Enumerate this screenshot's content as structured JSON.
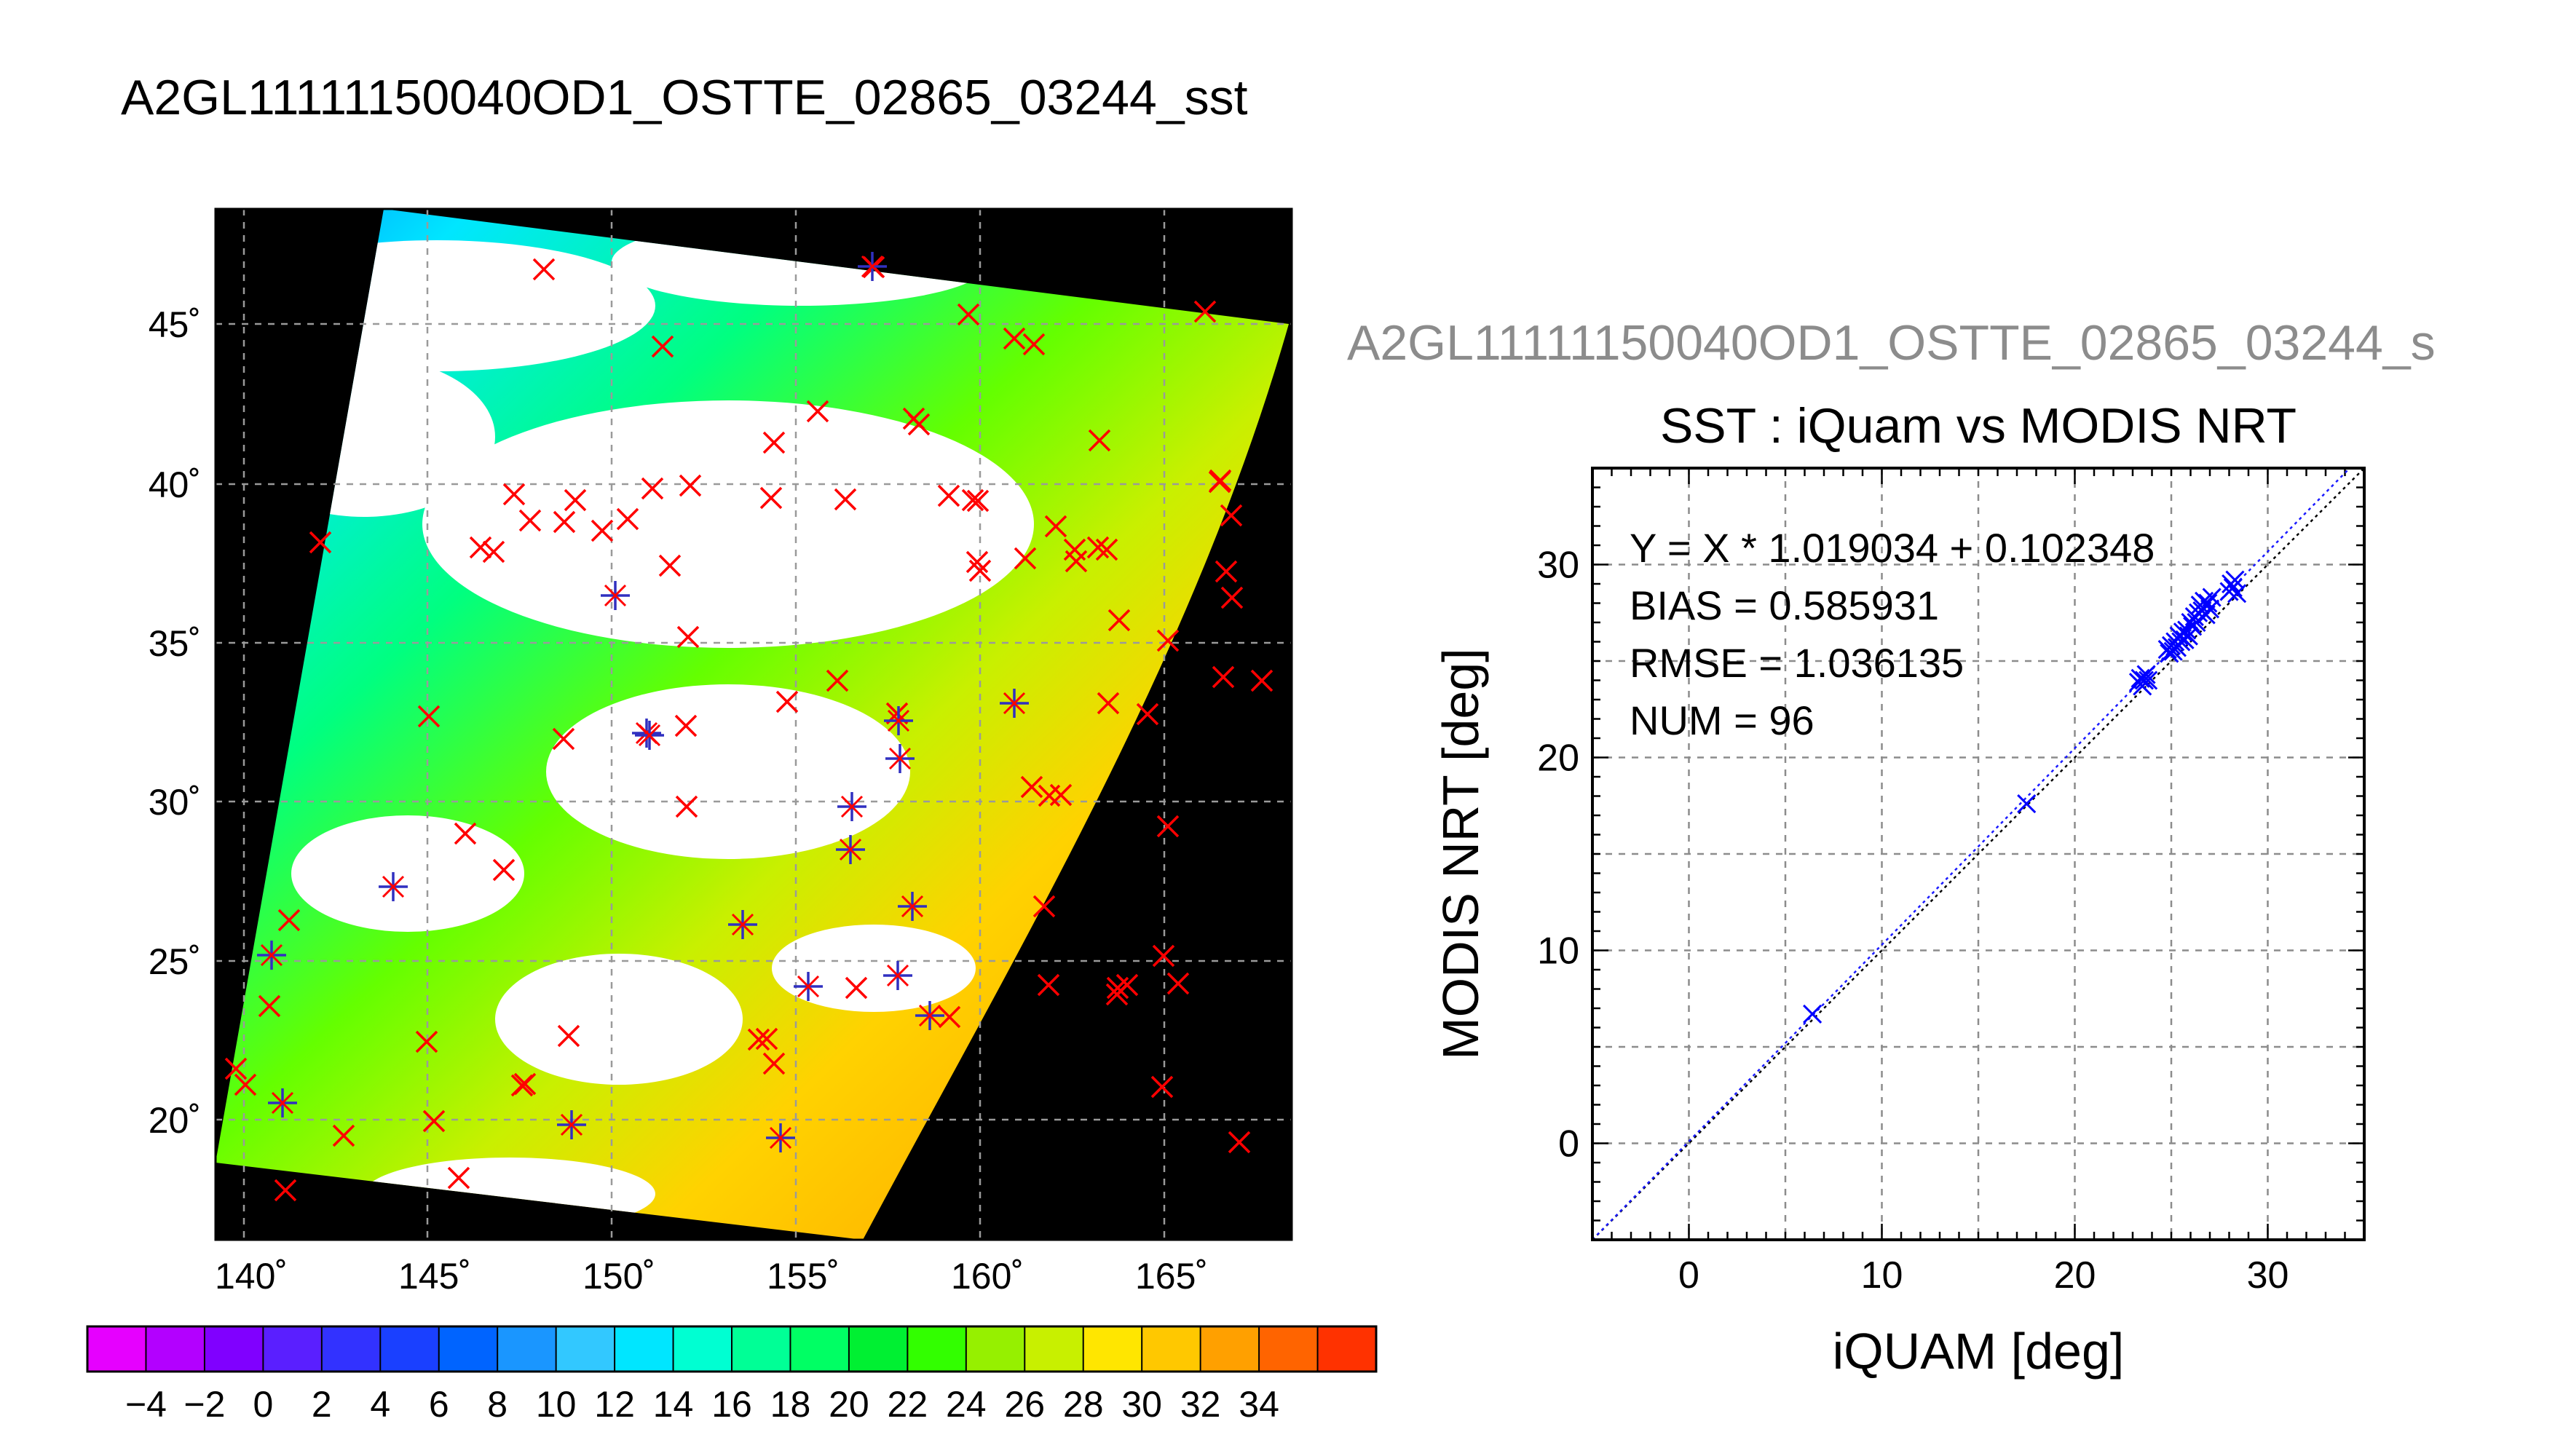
{
  "title": "A2GL11111150040OD1_OSTTE_02865_03244_sst",
  "map_panel": {
    "lat_labels": [
      "45˚",
      "40˚",
      "35˚",
      "30˚",
      "25˚",
      "20˚"
    ],
    "lon_labels": [
      "140˚",
      "145˚",
      "150˚",
      "155˚",
      "160˚",
      "165˚"
    ],
    "colors": {
      "background": "#000000",
      "land_cloud": "#ffffff",
      "match_marker": "#ff0000",
      "matched_star": "#3030c0"
    }
  },
  "colorbar": {
    "tick_labels": [
      "−4",
      "−2",
      "0",
      "2",
      "4",
      "6",
      "8",
      "10",
      "12",
      "14",
      "16",
      "18",
      "20",
      "22",
      "24",
      "26",
      "28",
      "30",
      "32",
      "34"
    ],
    "colors": [
      "#e600ff",
      "#b300ff",
      "#8000ff",
      "#5a1fff",
      "#3232ff",
      "#1a40ff",
      "#0064ff",
      "#1a96ff",
      "#32c8ff",
      "#00e6ff",
      "#00ffd2",
      "#00ff96",
      "#00ff64",
      "#00f032",
      "#32ff00",
      "#96f000",
      "#c8f000",
      "#ffe600",
      "#ffc800",
      "#ffa000",
      "#ff6400",
      "#ff3200"
    ]
  },
  "scatter_panel": {
    "subtitle": "A2GL11111150040OD1_OSTTE_02865_03244_s",
    "stats_lines": [
      "Y = X * 1.019034 + 0.102348",
      "BIAS = 0.585931",
      "RMSE = 1.036135",
      "NUM = 96"
    ],
    "marker_color": "#0000ff"
  },
  "chart_data": {
    "type": "scatter",
    "title": "SST : iQuam vs MODIS NRT",
    "xlabel": "iQUAM [deg]",
    "ylabel": "MODIS NRT [deg]",
    "xlim": [
      -5,
      35
    ],
    "ylim": [
      -5,
      35
    ],
    "x_ticks": [
      0,
      10,
      20,
      30
    ],
    "y_ticks": [
      0,
      10,
      20,
      30
    ],
    "grid": true,
    "fit": {
      "slope": 1.019034,
      "intercept": 0.102348
    },
    "series": [
      {
        "values": [
          [
            6.4,
            6.7
          ],
          [
            17.5,
            17.6
          ],
          [
            23.3,
            23.9
          ],
          [
            23.4,
            24.1
          ],
          [
            23.5,
            23.7
          ],
          [
            23.6,
            24.0
          ],
          [
            23.7,
            24.3
          ],
          [
            23.8,
            24.0
          ],
          [
            24.8,
            25.6
          ],
          [
            24.9,
            25.4
          ],
          [
            25.0,
            25.8
          ],
          [
            25.1,
            25.5
          ],
          [
            25.2,
            26.0
          ],
          [
            25.3,
            25.7
          ],
          [
            25.4,
            26.3
          ],
          [
            25.5,
            26.0
          ],
          [
            25.6,
            26.5
          ],
          [
            25.7,
            26.1
          ],
          [
            25.8,
            26.6
          ],
          [
            25.9,
            26.3
          ],
          [
            26.0,
            27.0
          ],
          [
            26.1,
            26.8
          ],
          [
            26.2,
            27.3
          ],
          [
            26.3,
            27.0
          ],
          [
            26.4,
            27.5
          ],
          [
            26.5,
            27.9
          ],
          [
            26.6,
            27.6
          ],
          [
            26.7,
            28.1
          ],
          [
            26.8,
            27.4
          ],
          [
            26.9,
            28.0
          ],
          [
            27.0,
            27.7
          ],
          [
            27.1,
            28.3
          ],
          [
            28.0,
            28.6
          ],
          [
            28.1,
            29.0
          ],
          [
            28.2,
            28.8
          ],
          [
            28.3,
            29.2
          ],
          [
            28.4,
            28.5
          ]
        ]
      }
    ]
  }
}
